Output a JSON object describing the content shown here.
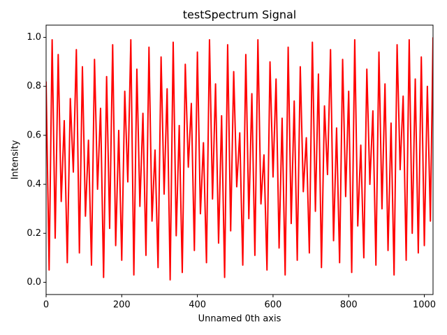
{
  "chart_data": {
    "type": "line",
    "title": "testSpectrum Signal",
    "xlabel": "Unnamed 0th axis",
    "ylabel": "Intensity",
    "color": "#ff0000",
    "x": [
      0,
      8,
      16,
      24,
      32,
      40,
      48,
      56,
      64,
      72,
      80,
      88,
      96,
      104,
      112,
      120,
      128,
      136,
      144,
      152,
      160,
      168,
      176,
      184,
      192,
      200,
      208,
      216,
      224,
      232,
      240,
      248,
      256,
      264,
      272,
      280,
      288,
      296,
      304,
      312,
      320,
      328,
      336,
      344,
      352,
      360,
      368,
      376,
      384,
      392,
      400,
      408,
      416,
      424,
      432,
      440,
      448,
      456,
      464,
      472,
      480,
      488,
      496,
      504,
      512,
      520,
      528,
      536,
      544,
      552,
      560,
      568,
      576,
      584,
      592,
      600,
      608,
      616,
      624,
      632,
      640,
      648,
      656,
      664,
      672,
      680,
      688,
      696,
      704,
      712,
      720,
      728,
      736,
      744,
      752,
      760,
      768,
      776,
      784,
      792,
      800,
      808,
      816,
      824,
      832,
      840,
      848,
      856,
      864,
      872,
      880,
      888,
      896,
      904,
      912,
      920,
      928,
      936,
      944,
      952,
      960,
      968,
      976,
      984,
      992,
      1000,
      1008,
      1016,
      1023
    ],
    "values": [
      0.82,
      0.05,
      0.99,
      0.18,
      0.93,
      0.33,
      0.66,
      0.08,
      0.75,
      0.45,
      0.95,
      0.12,
      0.88,
      0.27,
      0.58,
      0.07,
      0.91,
      0.38,
      0.71,
      0.02,
      0.84,
      0.22,
      0.97,
      0.15,
      0.62,
      0.09,
      0.78,
      0.41,
      0.99,
      0.03,
      0.87,
      0.31,
      0.69,
      0.11,
      0.96,
      0.25,
      0.54,
      0.06,
      0.92,
      0.36,
      0.79,
      0.01,
      0.98,
      0.19,
      0.64,
      0.04,
      0.89,
      0.47,
      0.73,
      0.13,
      0.94,
      0.28,
      0.57,
      0.08,
      0.99,
      0.34,
      0.81,
      0.16,
      0.68,
      0.02,
      0.97,
      0.21,
      0.86,
      0.39,
      0.61,
      0.07,
      0.93,
      0.26,
      0.77,
      0.11,
      0.99,
      0.32,
      0.52,
      0.05,
      0.9,
      0.43,
      0.83,
      0.14,
      0.67,
      0.03,
      0.96,
      0.24,
      0.74,
      0.09,
      0.88,
      0.37,
      0.59,
      0.12,
      0.98,
      0.29,
      0.85,
      0.06,
      0.72,
      0.44,
      0.95,
      0.17,
      0.63,
      0.08,
      0.91,
      0.35,
      0.78,
      0.04,
      0.99,
      0.23,
      0.56,
      0.1,
      0.87,
      0.4,
      0.7,
      0.07,
      0.94,
      0.3,
      0.81,
      0.13,
      0.65,
      0.03,
      0.97,
      0.46,
      0.76,
      0.09,
      0.99,
      0.2,
      0.83,
      0.12,
      0.92,
      0.15,
      0.8,
      0.25,
      1.0
    ],
    "xlim": [
      0,
      1023
    ],
    "xticks": [
      0,
      200,
      400,
      600,
      800,
      1000
    ],
    "ylim": [
      -0.05,
      1.05
    ],
    "yticks": [
      {
        "value": 0,
        "label": "0.0"
      },
      0.2,
      0.4,
      0.6,
      0.8,
      {
        "value": 1,
        "label": "1.0"
      }
    ]
  }
}
